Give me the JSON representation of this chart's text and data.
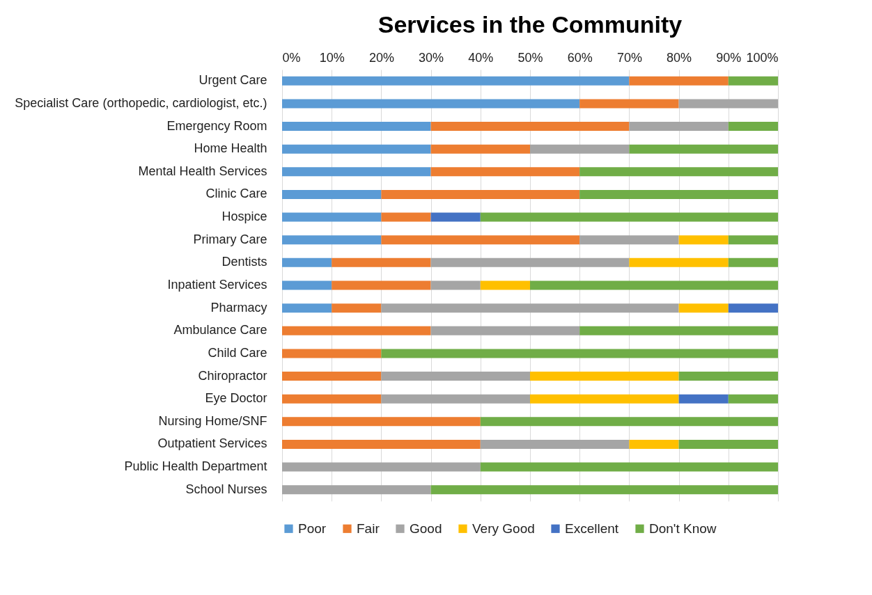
{
  "chart_data": {
    "type": "bar",
    "orientation": "horizontal",
    "stacked": true,
    "title": "Services in the Community",
    "categories": [
      "Urgent Care",
      "Specialist Care (orthopedic, cardiologist, etc.)",
      "Emergency Room",
      "Home Health",
      "Mental Health Services",
      "Clinic Care",
      "Hospice",
      "Primary Care",
      "Dentists",
      "Inpatient Services",
      "Pharmacy",
      "Ambulance Care",
      "Child Care",
      "Chiropractor",
      "Eye Doctor",
      "Nursing Home/SNF",
      "Outpatient Services",
      "Public Health Department",
      "School Nurses"
    ],
    "series": [
      {
        "name": "Poor",
        "color": "#5b9bd5",
        "values": [
          70,
          60,
          30,
          30,
          30,
          20,
          20,
          20,
          10,
          10,
          10,
          0,
          0,
          0,
          0,
          0,
          0,
          0,
          0
        ]
      },
      {
        "name": "Fair",
        "color": "#ed7d31",
        "values": [
          20,
          20,
          40,
          20,
          30,
          40,
          10,
          40,
          20,
          20,
          10,
          30,
          20,
          20,
          20,
          40,
          40,
          0,
          0
        ]
      },
      {
        "name": "Good",
        "color": "#a5a5a5",
        "values": [
          0,
          20,
          20,
          20,
          0,
          0,
          0,
          20,
          40,
          10,
          60,
          30,
          0,
          30,
          30,
          0,
          30,
          40,
          30
        ]
      },
      {
        "name": "Very Good",
        "color": "#ffc000",
        "values": [
          0,
          0,
          0,
          0,
          0,
          0,
          0,
          10,
          20,
          10,
          10,
          0,
          0,
          30,
          30,
          0,
          10,
          0,
          0
        ]
      },
      {
        "name": "Excellent",
        "color": "#4472c4",
        "values": [
          0,
          0,
          0,
          0,
          0,
          0,
          10,
          0,
          0,
          0,
          10,
          0,
          0,
          0,
          10,
          0,
          0,
          0,
          0
        ]
      },
      {
        "name": "Don't Know",
        "color": "#70ad47",
        "values": [
          10,
          0,
          10,
          30,
          40,
          40,
          60,
          10,
          10,
          50,
          0,
          40,
          80,
          20,
          10,
          60,
          20,
          60,
          70
        ]
      }
    ],
    "xlim": [
      0,
      100
    ],
    "xticks": [
      {
        "value": 0,
        "label": "0%"
      },
      {
        "value": 10,
        "label": "10%"
      },
      {
        "value": 20,
        "label": "20%"
      },
      {
        "value": 30,
        "label": "30%"
      },
      {
        "value": 40,
        "label": "40%"
      },
      {
        "value": 50,
        "label": "50%"
      },
      {
        "value": 60,
        "label": "60%"
      },
      {
        "value": 70,
        "label": "70%"
      },
      {
        "value": 80,
        "label": "80%"
      },
      {
        "value": 90,
        "label": "90%"
      },
      {
        "value": 100,
        "label": "100%"
      }
    ],
    "grid": "x",
    "legend": "bottom"
  }
}
